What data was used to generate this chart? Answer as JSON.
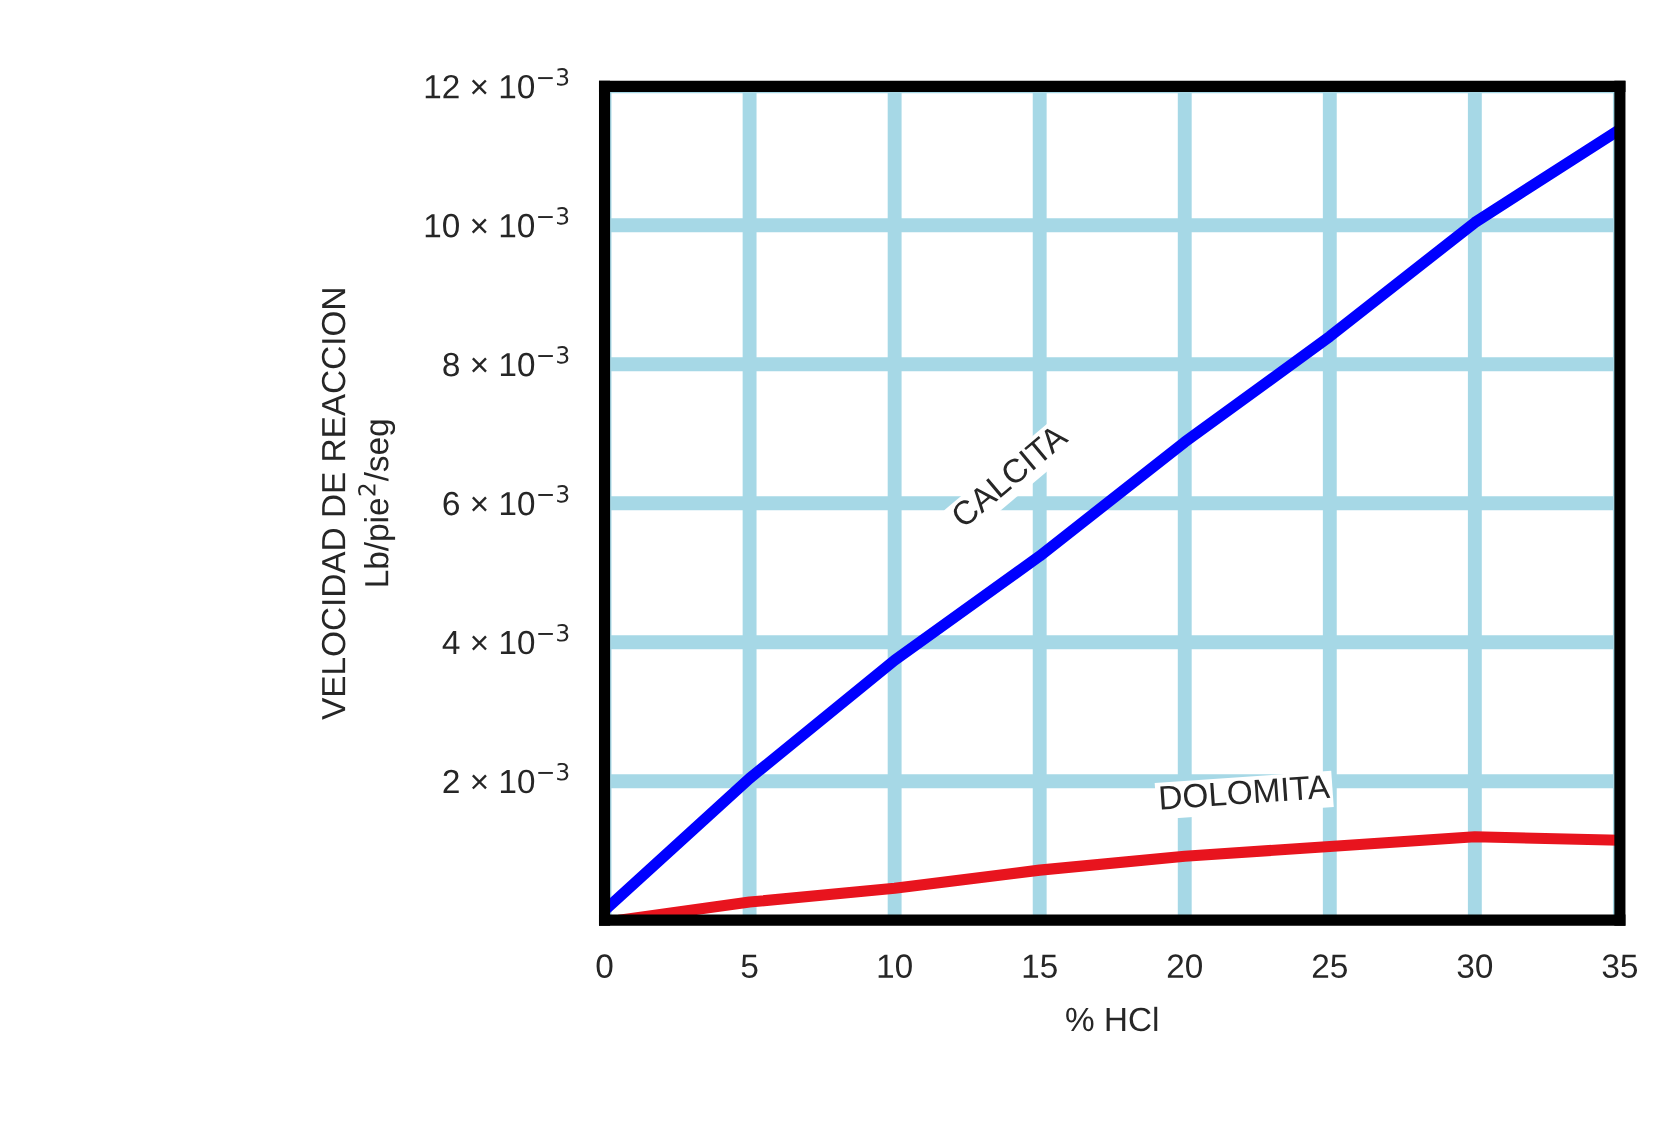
{
  "chart_data": {
    "type": "line",
    "xlabel": "% HCl",
    "ylabel": "VELOCIDAD DE REACCION\nLb/pie$^{2}$/seg",
    "x": [
      0,
      5,
      10,
      15,
      20,
      25,
      30,
      35
    ],
    "series": [
      {
        "name": "CALCITA",
        "color": "#0000ff",
        "values": [
          0.00014,
          0.00204,
          0.00374,
          0.00524,
          0.00688,
          0.0084,
          0.01004,
          0.01138
        ]
      },
      {
        "name": "DOLOMITA",
        "color": "#e8141e",
        "x": [
          0.5,
          5,
          10,
          15,
          20,
          25,
          30,
          35
        ],
        "values": [
          0.0,
          0.00026,
          0.00046,
          0.00072,
          0.00092,
          0.00106,
          0.0012,
          0.00115
        ]
      }
    ],
    "xlim": [
      0,
      35
    ],
    "ylim": [
      0,
      0.012
    ],
    "xticks": [
      0,
      5,
      10,
      15,
      20,
      25,
      30,
      35
    ],
    "yticks": [
      {
        "value": 0.002,
        "label": "2 × 10$^{−3}$"
      },
      {
        "value": 0.004,
        "label": "4 × 10$^{−3}$"
      },
      {
        "value": 0.006,
        "label": "6 × 10$^{−3}$"
      },
      {
        "value": 0.008,
        "label": "8 × 10$^{−3}$"
      },
      {
        "value": 0.01,
        "label": "10 × 10$^{−3}$"
      },
      {
        "value": 0.012,
        "label": "12 × 10$^{−3}$"
      }
    ],
    "grid": true
  }
}
